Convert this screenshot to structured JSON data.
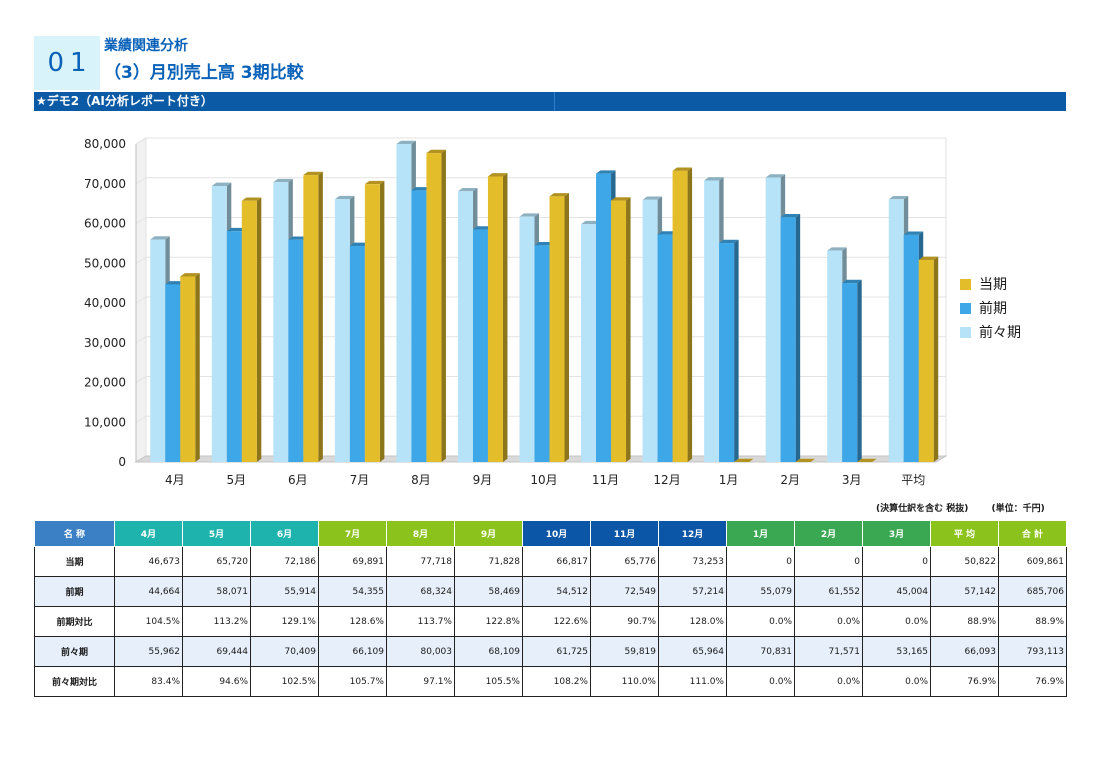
{
  "header": {
    "section_number": "01",
    "section_title": "業績関連分析",
    "page_title": "（3）月別売上高 3期比較",
    "banner": "★デモ2（AI分析レポート付き）"
  },
  "colors": {
    "current": "#e4bd2b",
    "previous": "#3ea7e8",
    "prior_previous": "#b6e3f8",
    "banner": "#0b5aa6",
    "title": "#0a62b8",
    "header_name": "#3b7fc4",
    "header_q1": "#1fb3ad",
    "header_q2": "#8cc21c",
    "header_q3": "#0b56a6",
    "header_q4": "#3aa852",
    "header_avg": "#8cc21c",
    "header_total": "#8cc21c"
  },
  "chart_data": {
    "type": "bar",
    "categories": [
      "4月",
      "5月",
      "6月",
      "7月",
      "8月",
      "9月",
      "10月",
      "11月",
      "12月",
      "1月",
      "2月",
      "3月",
      "平均"
    ],
    "series": [
      {
        "name": "前々期",
        "values": [
          55962,
          69444,
          70409,
          66109,
          80003,
          68109,
          61725,
          59819,
          65964,
          70831,
          71571,
          53165,
          66093
        ]
      },
      {
        "name": "前期",
        "values": [
          44664,
          58071,
          55914,
          54355,
          68324,
          58469,
          54512,
          72549,
          57214,
          55079,
          61552,
          45004,
          57142
        ]
      },
      {
        "name": "当期",
        "values": [
          46673,
          65720,
          72186,
          69891,
          77718,
          71828,
          66817,
          65776,
          73253,
          0,
          0,
          0,
          50822
        ]
      }
    ],
    "ylim": [
      0,
      80000
    ],
    "yticks": [
      "0",
      "10,000",
      "20,000",
      "30,000",
      "40,000",
      "50,000",
      "60,000",
      "70,000",
      "80,000"
    ],
    "grid": true,
    "legend": [
      "当期",
      "前期",
      "前々期"
    ],
    "legend_position": "right"
  },
  "table": {
    "units_note": "(決算仕訳を含む 税抜)",
    "unit_label": "(単位：千円)",
    "headers": [
      "名 称",
      "4月",
      "5月",
      "6月",
      "7月",
      "8月",
      "9月",
      "10月",
      "11月",
      "12月",
      "1月",
      "2月",
      "3月",
      "平 均",
      "合 計"
    ],
    "rows": [
      {
        "label": "当期",
        "values": [
          "46,673",
          "65,720",
          "72,186",
          "69,891",
          "77,718",
          "71,828",
          "66,817",
          "65,776",
          "73,253",
          "0",
          "0",
          "0",
          "50,822",
          "609,861"
        ]
      },
      {
        "label": "前期",
        "values": [
          "44,664",
          "58,071",
          "55,914",
          "54,355",
          "68,324",
          "58,469",
          "54,512",
          "72,549",
          "57,214",
          "55,079",
          "61,552",
          "45,004",
          "57,142",
          "685,706"
        ]
      },
      {
        "label": "前期対比",
        "values": [
          "104.5%",
          "113.2%",
          "129.1%",
          "128.6%",
          "113.7%",
          "122.8%",
          "122.6%",
          "90.7%",
          "128.0%",
          "0.0%",
          "0.0%",
          "0.0%",
          "88.9%",
          "88.9%"
        ]
      },
      {
        "label": "前々期",
        "values": [
          "55,962",
          "69,444",
          "70,409",
          "66,109",
          "80,003",
          "68,109",
          "61,725",
          "59,819",
          "65,964",
          "70,831",
          "71,571",
          "53,165",
          "66,093",
          "793,113"
        ]
      },
      {
        "label": "前々期対比",
        "values": [
          "83.4%",
          "94.6%",
          "102.5%",
          "105.7%",
          "97.1%",
          "105.5%",
          "108.2%",
          "110.0%",
          "111.0%",
          "0.0%",
          "0.0%",
          "0.0%",
          "76.9%",
          "76.9%"
        ]
      }
    ]
  }
}
